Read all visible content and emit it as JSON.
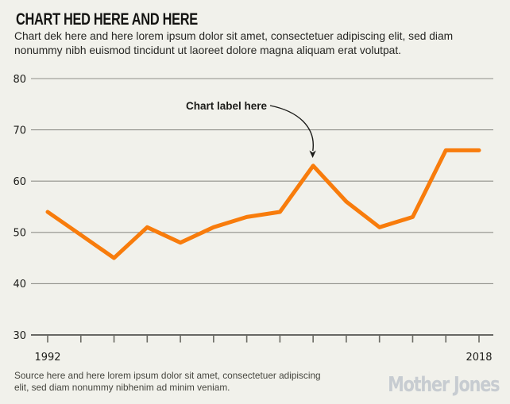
{
  "header": {
    "title": "CHART HED HERE AND HERE",
    "dek": "Chart dek here and here lorem ipsum dolor sit amet, consectetuer adipiscing elit, sed diam nonummy nibh euismod tincidunt ut laoreet dolore magna aliquam erat volutpat."
  },
  "chart_data": {
    "type": "line",
    "x": [
      1992,
      1994,
      1996,
      1998,
      2000,
      2002,
      2004,
      2006,
      2008,
      2010,
      2012,
      2014,
      2016,
      2018
    ],
    "values": [
      54,
      49.5,
      45,
      51,
      48,
      51,
      53,
      54,
      63,
      56,
      51,
      53,
      66,
      66
    ],
    "title": "",
    "xlabel": "",
    "ylabel": "",
    "ylim": [
      30,
      80
    ],
    "yticks": [
      30,
      40,
      50,
      60,
      70,
      80
    ],
    "xtick_labels_shown": [
      "1992",
      "2018"
    ],
    "grid": true,
    "legend": "none",
    "line_color": "#f87c0c",
    "annotation": {
      "label": "Chart label here",
      "points_to": {
        "x": 2008,
        "y": 63
      }
    }
  },
  "footer": {
    "source": "Source here and here lorem ipsum dolor sit amet, consectetuer adipiscing elit, sed diam nonummy nibhenim ad minim veniam.",
    "logo": "Mother Jones"
  },
  "colors": {
    "background": "#f1f1eb",
    "line": "#f87c0c",
    "gridline": "#90908a",
    "axis": "#3b3b37",
    "text": "#1d1d1a",
    "logo": "#c7ccd1"
  }
}
